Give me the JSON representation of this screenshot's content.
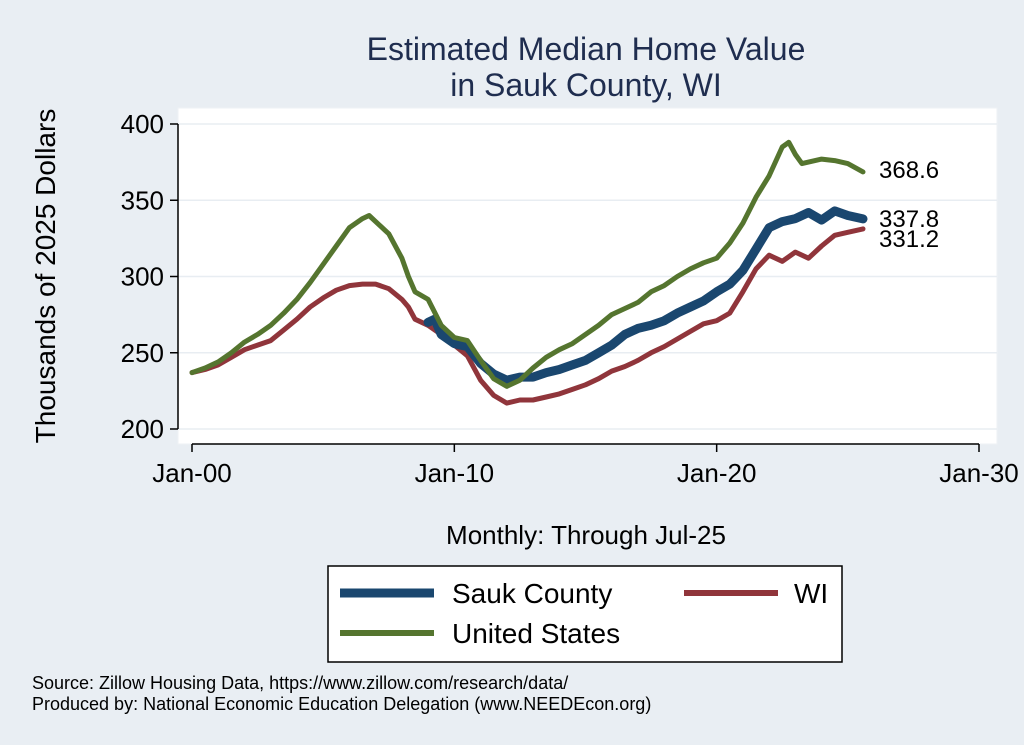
{
  "chart_data": {
    "type": "line",
    "title": [
      "Estimated Median Home Value",
      "in Sauk County, WI"
    ],
    "ylabel": "Thousands of 2025 Dollars",
    "xlabel": "Monthly: Through Jul-25",
    "ylim": [
      200,
      400
    ],
    "yticks": [
      200,
      250,
      300,
      350,
      400
    ],
    "xlim": [
      2000,
      2030
    ],
    "xticks": [
      {
        "year": 2000,
        "label": "Jan-00"
      },
      {
        "year": 2010,
        "label": "Jan-10"
      },
      {
        "year": 2020,
        "label": "Jan-20"
      },
      {
        "year": 2030,
        "label": "Jan-30"
      }
    ],
    "grid": true,
    "legend_position": "bottom",
    "series": [
      {
        "key": "sauk",
        "name": "Sauk County",
        "color": "#1a476f",
        "end_label": "337.8",
        "points": [
          [
            2009.0,
            270
          ],
          [
            2009.25,
            272
          ],
          [
            2009.5,
            262
          ],
          [
            2010.0,
            256
          ],
          [
            2010.5,
            254
          ],
          [
            2011.0,
            243
          ],
          [
            2011.5,
            236
          ],
          [
            2012.0,
            232
          ],
          [
            2012.5,
            234
          ],
          [
            2013.0,
            234
          ],
          [
            2013.5,
            237
          ],
          [
            2014.0,
            239
          ],
          [
            2014.5,
            242
          ],
          [
            2015.0,
            245
          ],
          [
            2015.5,
            250
          ],
          [
            2016.0,
            255
          ],
          [
            2016.5,
            262
          ],
          [
            2017.0,
            266
          ],
          [
            2017.5,
            268
          ],
          [
            2018.0,
            271
          ],
          [
            2018.5,
            276
          ],
          [
            2019.0,
            280
          ],
          [
            2019.5,
            284
          ],
          [
            2020.0,
            290
          ],
          [
            2020.5,
            295
          ],
          [
            2021.0,
            304
          ],
          [
            2021.5,
            318
          ],
          [
            2022.0,
            332
          ],
          [
            2022.5,
            336
          ],
          [
            2023.0,
            338
          ],
          [
            2023.5,
            342
          ],
          [
            2024.0,
            337
          ],
          [
            2024.5,
            343
          ],
          [
            2025.0,
            340
          ],
          [
            2025.58,
            337.8
          ]
        ]
      },
      {
        "key": "wi",
        "name": "WI",
        "color": "#90353b",
        "end_label": "331.2",
        "points": [
          [
            2000.0,
            237
          ],
          [
            2000.5,
            239
          ],
          [
            2001.0,
            242
          ],
          [
            2001.5,
            247
          ],
          [
            2002.0,
            252
          ],
          [
            2002.5,
            255
          ],
          [
            2003.0,
            258
          ],
          [
            2003.5,
            265
          ],
          [
            2004.0,
            272
          ],
          [
            2004.5,
            280
          ],
          [
            2005.0,
            286
          ],
          [
            2005.5,
            291
          ],
          [
            2006.0,
            294
          ],
          [
            2006.5,
            295
          ],
          [
            2007.0,
            295
          ],
          [
            2007.5,
            292
          ],
          [
            2008.0,
            285
          ],
          [
            2008.25,
            280
          ],
          [
            2008.5,
            272
          ],
          [
            2009.0,
            268
          ],
          [
            2009.5,
            262
          ],
          [
            2010.0,
            255
          ],
          [
            2010.5,
            248
          ],
          [
            2011.0,
            232
          ],
          [
            2011.5,
            222
          ],
          [
            2012.0,
            217
          ],
          [
            2012.5,
            219
          ],
          [
            2013.0,
            219
          ],
          [
            2013.5,
            221
          ],
          [
            2014.0,
            223
          ],
          [
            2014.5,
            226
          ],
          [
            2015.0,
            229
          ],
          [
            2015.5,
            233
          ],
          [
            2016.0,
            238
          ],
          [
            2016.5,
            241
          ],
          [
            2017.0,
            245
          ],
          [
            2017.5,
            250
          ],
          [
            2018.0,
            254
          ],
          [
            2018.5,
            259
          ],
          [
            2019.0,
            264
          ],
          [
            2019.5,
            269
          ],
          [
            2020.0,
            271
          ],
          [
            2020.5,
            276
          ],
          [
            2021.0,
            290
          ],
          [
            2021.5,
            305
          ],
          [
            2022.0,
            314
          ],
          [
            2022.5,
            310
          ],
          [
            2023.0,
            316
          ],
          [
            2023.5,
            312
          ],
          [
            2024.0,
            320
          ],
          [
            2024.5,
            327
          ],
          [
            2025.0,
            329
          ],
          [
            2025.58,
            331.2
          ]
        ]
      },
      {
        "key": "us",
        "name": "United States",
        "color": "#55752f",
        "end_label": "368.6",
        "points": [
          [
            2000.0,
            237
          ],
          [
            2000.5,
            240
          ],
          [
            2001.0,
            244
          ],
          [
            2001.5,
            250
          ],
          [
            2002.0,
            257
          ],
          [
            2002.5,
            262
          ],
          [
            2003.0,
            268
          ],
          [
            2003.5,
            276
          ],
          [
            2004.0,
            285
          ],
          [
            2004.5,
            296
          ],
          [
            2005.0,
            308
          ],
          [
            2005.5,
            320
          ],
          [
            2006.0,
            332
          ],
          [
            2006.5,
            338
          ],
          [
            2006.75,
            340
          ],
          [
            2007.0,
            336
          ],
          [
            2007.5,
            328
          ],
          [
            2008.0,
            312
          ],
          [
            2008.25,
            300
          ],
          [
            2008.5,
            290
          ],
          [
            2009.0,
            285
          ],
          [
            2009.5,
            268
          ],
          [
            2010.0,
            260
          ],
          [
            2010.5,
            258
          ],
          [
            2011.0,
            245
          ],
          [
            2011.5,
            233
          ],
          [
            2012.0,
            228
          ],
          [
            2012.5,
            232
          ],
          [
            2013.0,
            240
          ],
          [
            2013.5,
            247
          ],
          [
            2014.0,
            252
          ],
          [
            2014.5,
            256
          ],
          [
            2015.0,
            262
          ],
          [
            2015.5,
            268
          ],
          [
            2016.0,
            275
          ],
          [
            2016.5,
            279
          ],
          [
            2017.0,
            283
          ],
          [
            2017.5,
            290
          ],
          [
            2018.0,
            294
          ],
          [
            2018.5,
            300
          ],
          [
            2019.0,
            305
          ],
          [
            2019.5,
            309
          ],
          [
            2020.0,
            312
          ],
          [
            2020.5,
            322
          ],
          [
            2021.0,
            335
          ],
          [
            2021.5,
            352
          ],
          [
            2022.0,
            366
          ],
          [
            2022.5,
            385
          ],
          [
            2022.75,
            388
          ],
          [
            2023.0,
            380
          ],
          [
            2023.25,
            374
          ],
          [
            2023.5,
            375
          ],
          [
            2024.0,
            377
          ],
          [
            2024.5,
            376
          ],
          [
            2025.0,
            374
          ],
          [
            2025.58,
            368.6
          ]
        ]
      }
    ]
  },
  "legend": {
    "items": [
      {
        "key": "sauk",
        "label": "Sauk County"
      },
      {
        "key": "wi",
        "label": "WI"
      },
      {
        "key": "us",
        "label": "United States"
      }
    ]
  },
  "footer": {
    "source": "Source: Zillow Housing Data, https://www.zillow.com/research/data/",
    "produced": "Produced by: National Economic Education Delegation (www.NEEDEcon.org)"
  }
}
